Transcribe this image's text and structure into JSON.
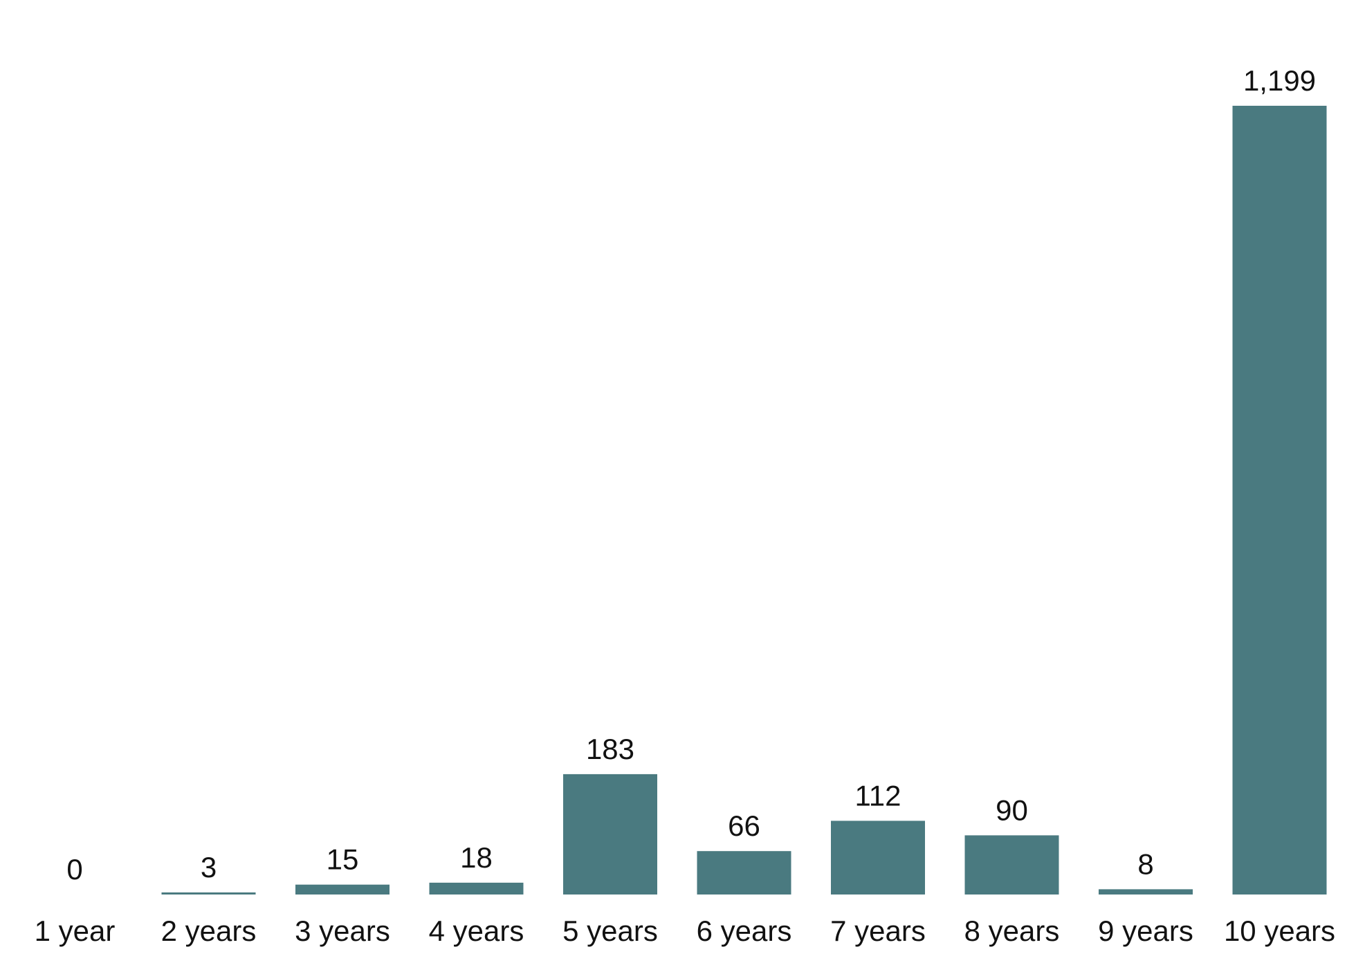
{
  "chart_data": {
    "type": "bar",
    "title": "",
    "xlabel": "",
    "ylabel": "",
    "categories": [
      "1 year",
      "2 years",
      "3 years",
      "4 years",
      "5 years",
      "6 years",
      "7 years",
      "8 years",
      "9 years",
      "10 years"
    ],
    "values": [
      0,
      3,
      15,
      18,
      183,
      66,
      112,
      90,
      8,
      1199
    ],
    "value_labels": [
      "0",
      "3",
      "15",
      "18",
      "183",
      "66",
      "112",
      "90",
      "8",
      "1,199"
    ],
    "ylim": [
      0,
      1199
    ],
    "grid": false,
    "legend": "none",
    "bar_color": "#4a7a80"
  }
}
